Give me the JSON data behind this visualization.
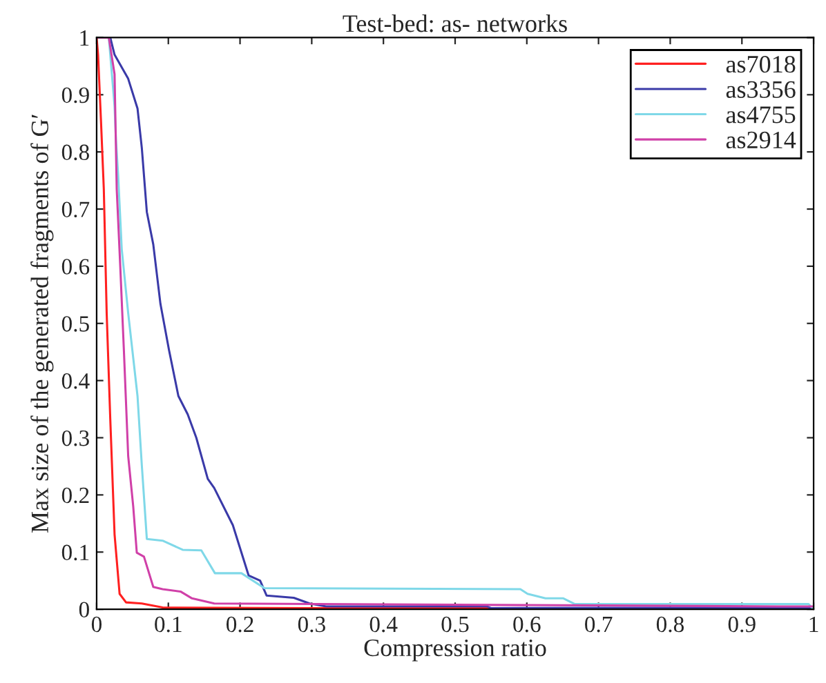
{
  "chart_data": {
    "type": "line",
    "title": "Test-bed: as- networks",
    "xlabel": "Compression ratio",
    "ylabel": "Max size of the generated fragments of G′",
    "xlim": [
      0,
      1
    ],
    "ylim": [
      0,
      1
    ],
    "xticks": [
      0,
      0.1,
      0.2,
      0.3,
      0.4,
      0.5,
      0.6,
      0.7,
      0.8,
      0.9,
      1
    ],
    "yticks": [
      0,
      0.1,
      0.2,
      0.3,
      0.4,
      0.5,
      0.6,
      0.7,
      0.8,
      0.9,
      1
    ],
    "grid": false,
    "legend": "top right",
    "marker": "none",
    "line_style": "solid",
    "series": [
      {
        "name": "as7018",
        "color": "#ff2020",
        "x": [
          0,
          0.002,
          0.006,
          0.01,
          0.014,
          0.019,
          0.025,
          0.032,
          0.041,
          0.063,
          0.092,
          0.3,
          0.6
        ],
        "values": [
          1,
          0.97,
          0.856,
          0.735,
          0.518,
          0.333,
          0.131,
          0.027,
          0.012,
          0.01,
          0.003,
          0.002,
          0.002
        ]
      },
      {
        "name": "as3356",
        "color": "#3a3aa8",
        "x": [
          0,
          0.019,
          0.025,
          0.044,
          0.057,
          0.063,
          0.07,
          0.079,
          0.089,
          0.101,
          0.114,
          0.127,
          0.139,
          0.155,
          0.164,
          0.19,
          0.212,
          0.228,
          0.237,
          0.275,
          0.297,
          0.32,
          0.544,
          0.55,
          1
        ],
        "values": [
          1,
          1,
          0.97,
          0.928,
          0.876,
          0.807,
          0.695,
          0.638,
          0.534,
          0.453,
          0.373,
          0.341,
          0.3,
          0.228,
          0.212,
          0.147,
          0.059,
          0.05,
          0.024,
          0.02,
          0.01,
          0.005,
          0.005,
          0.002,
          0.003
        ]
      },
      {
        "name": "as4755",
        "color": "#7fd8e8",
        "x": [
          0,
          0.017,
          0.025,
          0.027,
          0.03,
          0.035,
          0.044,
          0.057,
          0.063,
          0.07,
          0.092,
          0.12,
          0.146,
          0.165,
          0.202,
          0.234,
          0.591,
          0.601,
          0.626,
          0.651,
          0.667,
          0.993,
          1
        ],
        "values": [
          1,
          1,
          0.88,
          0.82,
          0.759,
          0.63,
          0.518,
          0.373,
          0.252,
          0.123,
          0.12,
          0.104,
          0.103,
          0.063,
          0.063,
          0.037,
          0.035,
          0.027,
          0.019,
          0.019,
          0.009,
          0.009,
          0
        ]
      },
      {
        "name": "as2914",
        "color": "#d040a8",
        "x": [
          0,
          0.017,
          0.025,
          0.028,
          0.033,
          0.038,
          0.044,
          0.051,
          0.056,
          0.066,
          0.079,
          0.092,
          0.117,
          0.133,
          0.164,
          0.95,
          1
        ],
        "values": [
          1,
          1,
          0.936,
          0.735,
          0.598,
          0.453,
          0.268,
          0.18,
          0.099,
          0.092,
          0.039,
          0.035,
          0.031,
          0.019,
          0.01,
          0.005,
          0.005
        ]
      }
    ]
  }
}
